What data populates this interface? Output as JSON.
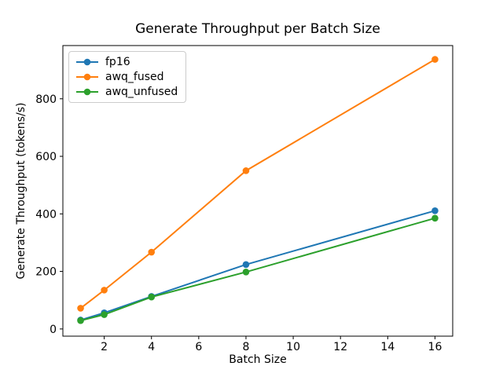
{
  "chart_data": {
    "type": "line",
    "title": "Generate Throughput per Batch Size",
    "xlabel": "Batch Size",
    "ylabel": "Generate Throughput (tokens/s)",
    "x": [
      1,
      2,
      4,
      8,
      16
    ],
    "series": [
      {
        "name": "fp16",
        "color": "#1f77b4",
        "values": [
          31,
          56,
          113,
          224,
          411
        ]
      },
      {
        "name": "awq_fused",
        "color": "#ff7f0e",
        "values": [
          72,
          135,
          267,
          550,
          937
        ]
      },
      {
        "name": "awq_unfused",
        "color": "#2ca02c",
        "values": [
          29,
          50,
          111,
          198,
          385
        ]
      }
    ],
    "xticks": [
      2,
      4,
      6,
      8,
      10,
      12,
      14,
      16
    ],
    "yticks": [
      0,
      200,
      400,
      600,
      800
    ],
    "xlim": [
      0.25,
      16.75
    ],
    "ylim": [
      -25,
      985
    ],
    "grid": false,
    "legend_position": "upper left",
    "marker": "o",
    "line_width": 2,
    "marker_radius": 4.3,
    "axis_color": "#000000",
    "background": "#ffffff"
  }
}
